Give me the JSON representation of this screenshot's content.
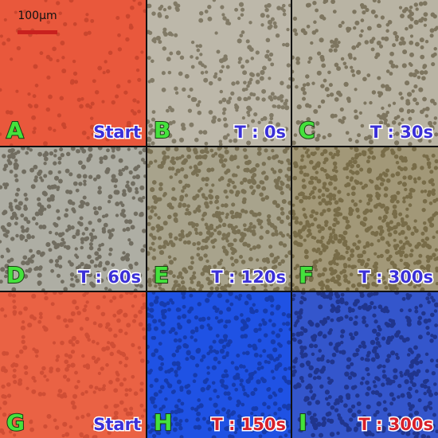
{
  "scale_bar": "100µm",
  "panels": [
    {
      "letter": "A",
      "label": "Start"
    },
    {
      "letter": "B",
      "label": "T : 0s"
    },
    {
      "letter": "C",
      "label": "T : 30s"
    },
    {
      "letter": "D",
      "label": "T : 60s"
    },
    {
      "letter": "E",
      "label": "T : 120s"
    },
    {
      "letter": "F",
      "label": "T : 300s"
    },
    {
      "letter": "G",
      "label": "Start"
    },
    {
      "letter": "H",
      "label": "T : 150s"
    },
    {
      "letter": "I",
      "label": "T : 300s"
    }
  ]
}
